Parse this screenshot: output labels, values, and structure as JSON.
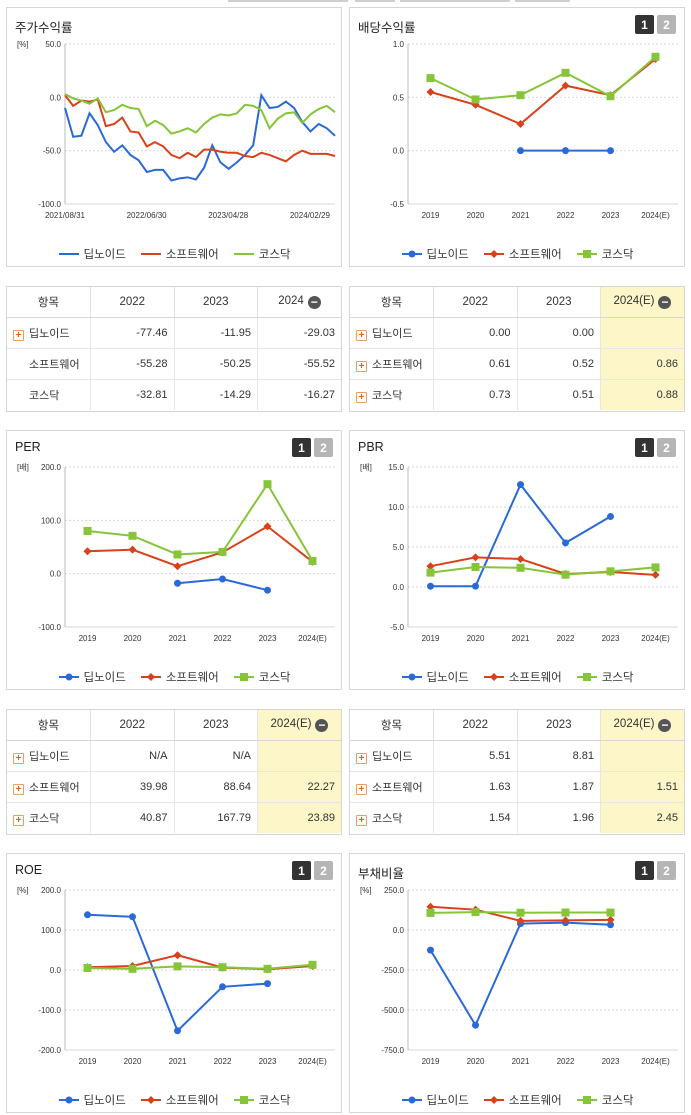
{
  "colors": {
    "deep": "#2a6ad8",
    "soft": "#d8411a",
    "kosdaq": "#86c43a"
  },
  "legend": [
    "딥노이드",
    "소프트웨어",
    "코스닥"
  ],
  "panels": {
    "stock": {
      "title": "주가수익률",
      "unit": "[%]",
      "chart_data": {
        "type": "line",
        "title": "주가수익률",
        "ylabel": "[%]",
        "ylim": [
          -100,
          50
        ],
        "yticks": [
          "50.0",
          "0.0",
          "-50.0",
          "-100.0"
        ],
        "x_tick_labels": [
          "2021/08/31",
          "2022/06/30",
          "2023/04/28",
          "2024/02/29"
        ],
        "x_count": 44,
        "series": [
          {
            "name": "딥노이드",
            "values": [
              -10,
              -37,
              -36,
              -15,
              -26,
              -42,
              -51,
              -45,
              -54,
              -59,
              -70,
              -68,
              -68,
              -78,
              -76,
              -75,
              -77,
              -66,
              -45,
              -61,
              -67,
              -61,
              -54,
              -45,
              2,
              -10,
              -9,
              -4,
              -10,
              -23,
              -32,
              -25,
              -29,
              -36
            ]
          },
          {
            "name": "소프트웨어",
            "values": [
              2,
              -8,
              -3,
              -4,
              -2,
              -27,
              -25,
              -19,
              -32,
              -33,
              -46,
              -42,
              -46,
              -54,
              -57,
              -52,
              -56,
              -49,
              -49,
              -51,
              -52,
              -52,
              -55,
              -56,
              -52,
              -54,
              -57,
              -60,
              -54,
              -50,
              -53,
              -53,
              -53,
              -55
            ]
          },
          {
            "name": "코스닥",
            "values": [
              3,
              -1,
              -3,
              -6,
              -1,
              -14,
              -12,
              -7,
              -10,
              -11,
              -27,
              -22,
              -26,
              -34,
              -32,
              -29,
              -33,
              -25,
              -19,
              -16,
              -17,
              -15,
              -7,
              -8,
              -12,
              -29,
              -20,
              -15,
              -14,
              -24,
              -16,
              -11,
              -8,
              -14
            ]
          }
        ]
      }
    },
    "dividend": {
      "title": "배당수익률",
      "tabs": [
        "1",
        "2"
      ],
      "chart_data": {
        "type": "line",
        "title": "배당수익률",
        "ylim": [
          -0.5,
          1.0
        ],
        "yticks": [
          "1.0",
          "0.5",
          "0.0",
          "-0.5"
        ],
        "categories": [
          "2019",
          "2020",
          "2021",
          "2022",
          "2023",
          "2024(E)"
        ],
        "series": [
          {
            "name": "딥노이드",
            "values": [
              null,
              null,
              0.0,
              0.0,
              0.0,
              null
            ]
          },
          {
            "name": "소프트웨어",
            "values": [
              0.55,
              0.43,
              0.25,
              0.61,
              0.52,
              0.86
            ]
          },
          {
            "name": "코스닥",
            "values": [
              0.68,
              0.48,
              0.52,
              0.73,
              0.51,
              0.88
            ]
          }
        ]
      }
    },
    "per": {
      "title": "PER",
      "unit": "[배]",
      "tabs": [
        "1",
        "2"
      ],
      "chart_data": {
        "type": "line",
        "title": "PER",
        "ylabel": "[배]",
        "ylim": [
          -100,
          200
        ],
        "yticks": [
          "200.0",
          "100.0",
          "0.0",
          "-100.0"
        ],
        "categories": [
          "2019",
          "2020",
          "2021",
          "2022",
          "2023",
          "2024(E)"
        ],
        "series": [
          {
            "name": "딥노이드",
            "values": [
              null,
              null,
              -18,
              -10,
              -31,
              null
            ]
          },
          {
            "name": "소프트웨어",
            "values": [
              42,
              45,
              14,
              39.98,
              88.64,
              22.27
            ]
          },
          {
            "name": "코스닥",
            "values": [
              80,
              71,
              36,
              40.87,
              167.79,
              23.89
            ]
          }
        ]
      }
    },
    "pbr": {
      "title": "PBR",
      "unit": "[배]",
      "tabs": [
        "1",
        "2"
      ],
      "chart_data": {
        "type": "line",
        "title": "PBR",
        "ylabel": "[배]",
        "ylim": [
          -5,
          15
        ],
        "yticks": [
          "15.0",
          "10.0",
          "5.0",
          "0.0",
          "-5.0"
        ],
        "categories": [
          "2019",
          "2020",
          "2021",
          "2022",
          "2023",
          "2024(E)"
        ],
        "series": [
          {
            "name": "딥노이드",
            "values": [
              0.1,
              0.1,
              12.8,
              5.51,
              8.81,
              null
            ]
          },
          {
            "name": "소프트웨어",
            "values": [
              2.6,
              3.7,
              3.5,
              1.63,
              1.87,
              1.51
            ]
          },
          {
            "name": "코스닥",
            "values": [
              1.8,
              2.5,
              2.4,
              1.54,
              1.96,
              2.45
            ]
          }
        ]
      }
    },
    "roe": {
      "title": "ROE",
      "unit": "[%]",
      "tabs": [
        "1",
        "2"
      ],
      "chart_data": {
        "type": "line",
        "title": "ROE",
        "ylabel": "[%]",
        "ylim": [
          -200,
          200
        ],
        "yticks": [
          "200.0",
          "100.0",
          "0.0",
          "-100.0",
          "-200.0"
        ],
        "categories": [
          "2019",
          "2020",
          "2021",
          "2022",
          "2023",
          "2024(E)"
        ],
        "series": [
          {
            "name": "딥노이드",
            "values": [
              138,
              133,
              -152,
              -42,
              -34,
              null
            ]
          },
          {
            "name": "소프트웨어",
            "values": [
              7,
              10,
              37,
              6,
              2,
              10
            ]
          },
          {
            "name": "코스닥",
            "values": [
              5,
              3,
              9,
              7,
              3,
              13
            ]
          }
        ]
      }
    },
    "debt": {
      "title": "부채비율",
      "unit": "[%]",
      "tabs": [
        "1",
        "2"
      ],
      "chart_data": {
        "type": "line",
        "title": "부채비율",
        "ylabel": "[%]",
        "ylim": [
          -750,
          250
        ],
        "yticks": [
          "250.0",
          "0.0",
          "-250.0",
          "-500.0",
          "-750.0"
        ],
        "categories": [
          "2019",
          "2020",
          "2021",
          "2022",
          "2023",
          "2024(E)"
        ],
        "series": [
          {
            "name": "딥노이드",
            "values": [
              -126,
              -595,
              40,
              46,
              33,
              null
            ]
          },
          {
            "name": "소프트웨어",
            "values": [
              145,
              127,
              57,
              60,
              63,
              null
            ]
          },
          {
            "name": "코스닥",
            "values": [
              107,
              112,
              108,
              109,
              109,
              null
            ]
          }
        ]
      }
    }
  },
  "tables": {
    "stock": {
      "headers": [
        "항목",
        "2022",
        "2023",
        "2024"
      ],
      "rows": [
        {
          "name": "딥노이드",
          "plus": true,
          "v": [
            "-77.46",
            "-11.95",
            "-29.03"
          ]
        },
        {
          "name": "소프트웨어",
          "plus": false,
          "v": [
            "-55.28",
            "-50.25",
            "-55.52"
          ]
        },
        {
          "name": "코스닥",
          "plus": false,
          "v": [
            "-32.81",
            "-14.29",
            "-16.27"
          ]
        }
      ]
    },
    "dividend": {
      "headers": [
        "항목",
        "2022",
        "2023",
        "2024(E)"
      ],
      "rows": [
        {
          "name": "딥노이드",
          "plus": true,
          "v": [
            "0.00",
            "0.00",
            ""
          ]
        },
        {
          "name": "소프트웨어",
          "plus": true,
          "v": [
            "0.61",
            "0.52",
            "0.86"
          ]
        },
        {
          "name": "코스닥",
          "plus": true,
          "v": [
            "0.73",
            "0.51",
            "0.88"
          ]
        }
      ]
    },
    "per": {
      "headers": [
        "항목",
        "2022",
        "2023",
        "2024(E)"
      ],
      "rows": [
        {
          "name": "딥노이드",
          "plus": true,
          "v": [
            "N/A",
            "N/A",
            ""
          ]
        },
        {
          "name": "소프트웨어",
          "plus": true,
          "v": [
            "39.98",
            "88.64",
            "22.27"
          ]
        },
        {
          "name": "코스닥",
          "plus": true,
          "v": [
            "40.87",
            "167.79",
            "23.89"
          ]
        }
      ]
    },
    "pbr": {
      "headers": [
        "항목",
        "2022",
        "2023",
        "2024(E)"
      ],
      "rows": [
        {
          "name": "딥노이드",
          "plus": true,
          "v": [
            "5.51",
            "8.81",
            ""
          ]
        },
        {
          "name": "소프트웨어",
          "plus": true,
          "v": [
            "1.63",
            "1.87",
            "1.51"
          ]
        },
        {
          "name": "코스닥",
          "plus": true,
          "v": [
            "1.54",
            "1.96",
            "2.45"
          ]
        }
      ]
    }
  }
}
